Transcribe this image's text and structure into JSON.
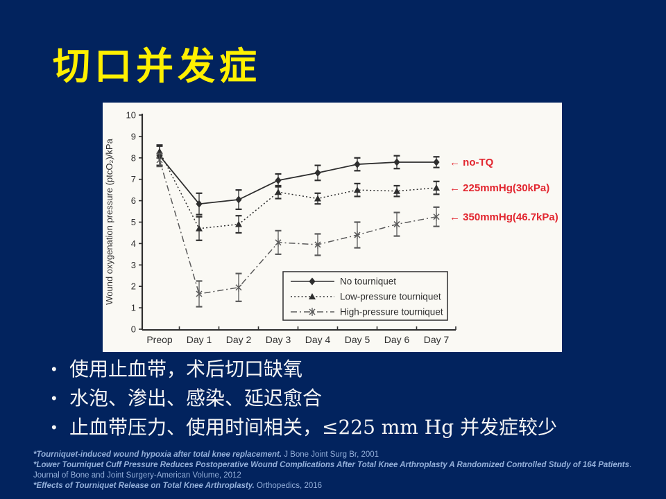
{
  "slide": {
    "title": "切口并发症",
    "bullet_char": "•",
    "bullets": [
      "使用止血带，术后切口缺氧",
      "水泡、渗出、感染、延迟愈合",
      "止血带压力、使用时间相关，≤225 mm Hg 并发症较少"
    ],
    "citations": [
      {
        "title": "*Tourniquet-induced wound hypoxia after total knee replacement.",
        "source": " J Bone Joint Surg Br, 2001"
      },
      {
        "title": "*Lower Tourniquet Cuff Pressure Reduces Postoperative Wound Complications After Total Knee Arthroplasty A Randomized Controlled Study of 164 Patients",
        "source": ". Journal of Bone and Joint Surgery-American Volume, 2012"
      },
      {
        "title": "*Effects of Tourniquet Release on Total Knee Arthroplasty.",
        "source": " Orthopedics, 2016"
      }
    ]
  },
  "colors": {
    "background": "#02235e",
    "title_text": "#fff000",
    "bullet_text": "#f5f5f5",
    "citation_text": "#94b0da",
    "annotation_red": "#e2262f",
    "chart_paper": "#faf9f4",
    "chart_ink": "#2e2e2e",
    "chart_gray": "#5a5a5a"
  },
  "chart_data": {
    "type": "line",
    "title": "",
    "xlabel": "",
    "ylabel": "Wound oxygenation pressure (ptcO₂)/kPa",
    "categories": [
      "Preop",
      "Day 1",
      "Day 2",
      "Day 3",
      "Day 4",
      "Day 5",
      "Day 6",
      "Day 7"
    ],
    "ylim": [
      0,
      10
    ],
    "ytick_step": 1,
    "grid": false,
    "legend_position": "inside-bottom-right",
    "series": [
      {
        "name": "No tourniquet",
        "line": "solid",
        "marker": "diamond",
        "values": [
          8.1,
          5.85,
          6.05,
          6.95,
          7.3,
          7.7,
          7.8,
          7.8
        ],
        "errors": [
          0.45,
          0.5,
          0.45,
          0.3,
          0.35,
          0.3,
          0.3,
          0.25
        ],
        "annotation": "← no-TQ"
      },
      {
        "name": "Low-pressure tourniquet",
        "line": "dotted",
        "marker": "triangle",
        "values": [
          8.3,
          4.7,
          4.9,
          6.4,
          6.1,
          6.5,
          6.45,
          6.6
        ],
        "errors": [
          0.3,
          0.55,
          0.4,
          0.3,
          0.25,
          0.3,
          0.25,
          0.3
        ],
        "annotation": "← 225mmHg(30kPa)"
      },
      {
        "name": "High-pressure tourniquet",
        "line": "dashdot",
        "marker": "xcross",
        "values": [
          7.9,
          1.65,
          1.95,
          4.05,
          3.95,
          4.4,
          4.9,
          5.25
        ],
        "errors": [
          0.3,
          0.6,
          0.65,
          0.55,
          0.5,
          0.6,
          0.55,
          0.45
        ],
        "annotation": "← 350mmHg(46.7kPa)"
      }
    ]
  }
}
